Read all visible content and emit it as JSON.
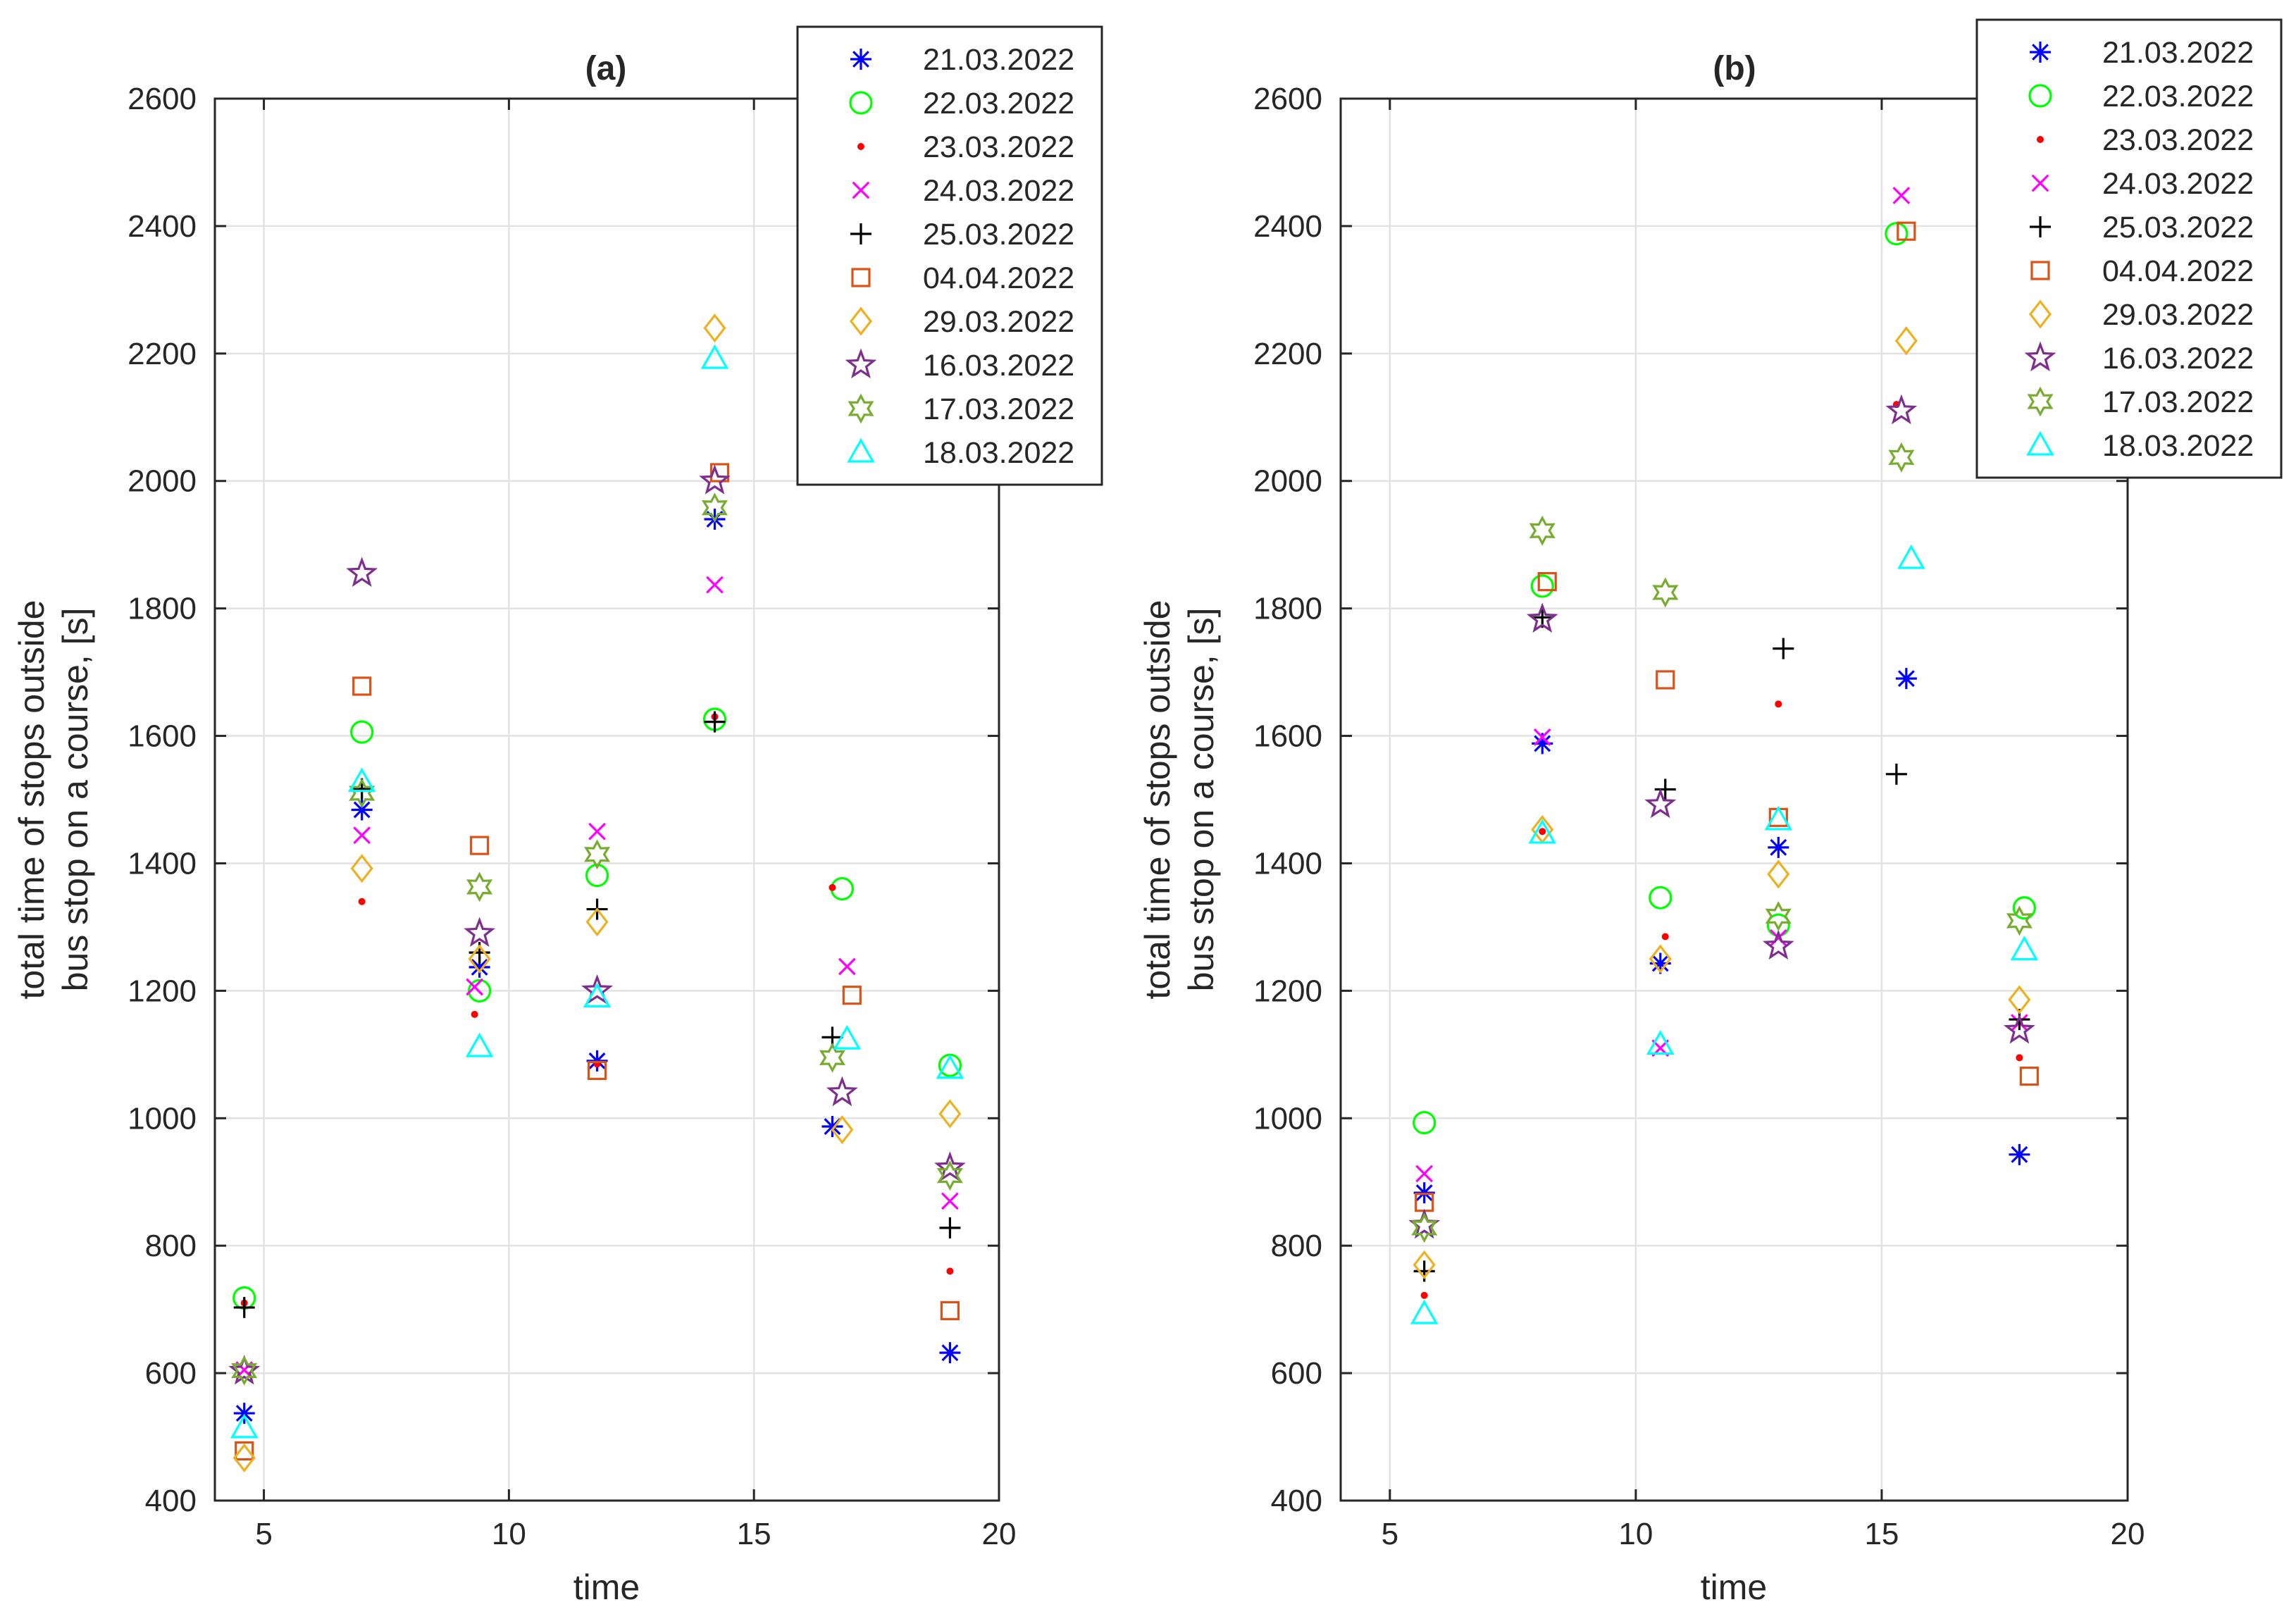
{
  "chart_data": [
    {
      "title": "(a)",
      "type": "scatter",
      "xlabel": "time",
      "ylabel": [
        "total time of stops outside",
        "bus stop on a course, [s]"
      ],
      "xlim": [
        4,
        20
      ],
      "ylim": [
        400,
        2600
      ],
      "xticks": [
        5,
        10,
        15,
        20
      ],
      "yticks": [
        400,
        600,
        800,
        1000,
        1200,
        1400,
        1600,
        1800,
        2000,
        2200,
        2400,
        2600
      ],
      "grid": true,
      "legend_position": "top-right",
      "series": [
        {
          "name": "21.03.2022",
          "marker": "asterisk",
          "color": "#0000ff",
          "x": [
            4.6,
            7.0,
            9.4,
            11.8,
            14.2,
            16.6,
            19.0
          ],
          "y": [
            537,
            1484,
            1237,
            1090,
            1940,
            987,
            632
          ]
        },
        {
          "name": "22.03.2022",
          "marker": "circle",
          "color": "#00ff00",
          "x": [
            4.6,
            7.0,
            9.4,
            11.8,
            14.2,
            16.8,
            19.0
          ],
          "y": [
            718,
            1606,
            1200,
            1381,
            1626,
            1360,
            1083
          ]
        },
        {
          "name": "23.03.2022",
          "marker": "dot",
          "color": "#ff0000",
          "x": [
            4.6,
            7.0,
            9.3,
            11.8,
            14.2,
            16.6,
            19.0
          ],
          "y": [
            710,
            1340,
            1163,
            1085,
            1630,
            1362,
            760
          ]
        },
        {
          "name": "24.03.2022",
          "marker": "x",
          "color": "#ff00ff",
          "x": [
            4.6,
            7.0,
            9.3,
            11.8,
            14.2,
            16.9,
            19.0
          ],
          "y": [
            605,
            1444,
            1206,
            1450,
            1837,
            1238,
            870
          ]
        },
        {
          "name": "25.03.2022",
          "marker": "plus",
          "color": "#000000",
          "x": [
            4.6,
            7.0,
            9.4,
            11.8,
            14.2,
            16.6,
            19.0
          ],
          "y": [
            703,
            1517,
            1260,
            1328,
            1622,
            1127,
            828
          ]
        },
        {
          "name": "04.04.2022",
          "marker": "square",
          "color": "#d95319",
          "x": [
            4.6,
            7.0,
            9.4,
            11.8,
            14.3,
            17.0,
            19.0
          ],
          "y": [
            478,
            1678,
            1428,
            1075,
            2013,
            1193,
            698
          ]
        },
        {
          "name": "29.03.2022",
          "marker": "diamond",
          "color": "#edb120",
          "x": [
            4.6,
            7.0,
            9.4,
            11.8,
            14.2,
            16.8,
            19.0
          ],
          "y": [
            467,
            1392,
            1250,
            1308,
            2240,
            982,
            1007
          ]
        },
        {
          "name": "16.03.2022",
          "marker": "pentagram",
          "color": "#7e2f8e",
          "x": [
            4.6,
            7.0,
            9.4,
            11.8,
            14.2,
            16.8,
            19.0
          ],
          "y": [
            603,
            1855,
            1290,
            1200,
            2000,
            1040,
            922
          ]
        },
        {
          "name": "17.03.2022",
          "marker": "hexagram",
          "color": "#77ac30",
          "x": [
            4.6,
            7.0,
            9.4,
            11.8,
            14.2,
            16.6,
            19.0
          ],
          "y": [
            604,
            1510,
            1363,
            1414,
            1958,
            1095,
            910
          ]
        },
        {
          "name": "18.03.2022",
          "marker": "triangle",
          "color": "#00ffff",
          "x": [
            4.6,
            7.0,
            9.4,
            11.8,
            14.2,
            16.9,
            19.0
          ],
          "y": [
            514,
            1528,
            1112,
            1190,
            2192,
            1124,
            1078
          ]
        }
      ]
    },
    {
      "title": "(b)",
      "type": "scatter",
      "xlabel": "time",
      "ylabel": [
        "total time of stops outside",
        "bus stop on a course, [s]"
      ],
      "xlim": [
        4,
        20
      ],
      "ylim": [
        400,
        2600
      ],
      "xticks": [
        5,
        10,
        15,
        20
      ],
      "yticks": [
        400,
        600,
        800,
        1000,
        1200,
        1400,
        1600,
        1800,
        2000,
        2200,
        2400,
        2600
      ],
      "grid": true,
      "legend_position": "top-right",
      "series": [
        {
          "name": "21.03.2022",
          "marker": "asterisk",
          "color": "#0000ff",
          "x": [
            5.7,
            8.1,
            10.5,
            12.9,
            15.5,
            17.8
          ],
          "y": [
            883,
            1588,
            1243,
            1425,
            1690,
            943
          ]
        },
        {
          "name": "22.03.2022",
          "marker": "circle",
          "color": "#00ff00",
          "x": [
            5.7,
            8.1,
            10.5,
            12.9,
            15.3,
            17.9
          ],
          "y": [
            993,
            1835,
            1346,
            1303,
            2388,
            1330
          ]
        },
        {
          "name": "23.03.2022",
          "marker": "dot",
          "color": "#ff0000",
          "x": [
            5.7,
            8.1,
            10.6,
            12.9,
            15.3,
            17.8
          ],
          "y": [
            722,
            1450,
            1285,
            1650,
            2120,
            1095
          ]
        },
        {
          "name": "24.03.2022",
          "marker": "x",
          "color": "#ff00ff",
          "x": [
            5.7,
            8.1,
            10.5,
            12.9,
            15.4,
            17.8
          ],
          "y": [
            913,
            1598,
            1110,
            1283,
            2448,
            1150
          ]
        },
        {
          "name": "25.03.2022",
          "marker": "plus",
          "color": "#000000",
          "x": [
            5.7,
            8.1,
            10.6,
            13.0,
            15.3,
            17.8
          ],
          "y": [
            760,
            1786,
            1516,
            1737,
            1540,
            1155
          ]
        },
        {
          "name": "04.04.2022",
          "marker": "square",
          "color": "#d95319",
          "x": [
            5.7,
            8.2,
            10.6,
            12.9,
            15.5,
            18.0
          ],
          "y": [
            868,
            1842,
            1688,
            1472,
            2392,
            1066
          ]
        },
        {
          "name": "29.03.2022",
          "marker": "diamond",
          "color": "#edb120",
          "x": [
            5.7,
            8.1,
            10.5,
            12.9,
            15.5,
            17.8
          ],
          "y": [
            770,
            1453,
            1250,
            1383,
            2220,
            1186
          ]
        },
        {
          "name": "16.03.2022",
          "marker": "pentagram",
          "color": "#7e2f8e",
          "x": [
            5.7,
            8.1,
            10.5,
            12.9,
            15.4,
            17.8
          ],
          "y": [
            832,
            1783,
            1492,
            1270,
            2110,
            1138
          ]
        },
        {
          "name": "17.03.2022",
          "marker": "hexagram",
          "color": "#77ac30",
          "x": [
            5.7,
            8.1,
            10.6,
            12.9,
            15.4,
            17.8
          ],
          "y": [
            828,
            1922,
            1825,
            1317,
            2037,
            1310
          ]
        },
        {
          "name": "18.03.2022",
          "marker": "triangle",
          "color": "#00ffff",
          "x": [
            5.7,
            8.1,
            10.5,
            12.9,
            15.6,
            17.9
          ],
          "y": [
            693,
            1447,
            1116,
            1468,
            1878,
            1264
          ]
        }
      ]
    }
  ]
}
